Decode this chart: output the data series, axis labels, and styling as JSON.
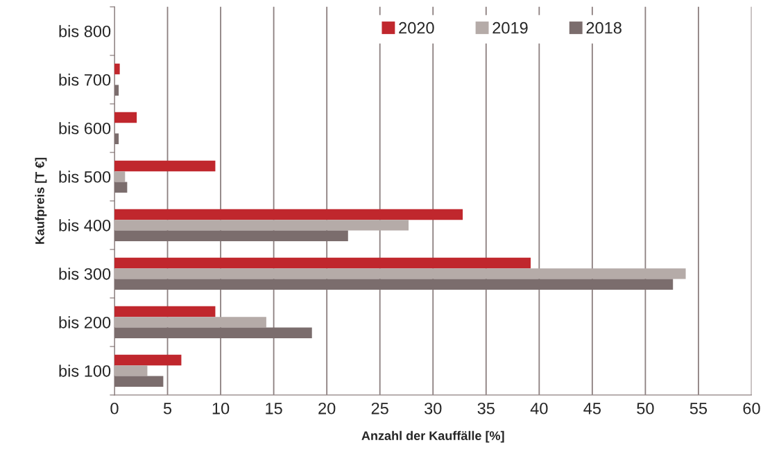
{
  "chart_data": {
    "type": "bar",
    "orientation": "horizontal",
    "xlabel": "Anzahl der Kauffälle [%]",
    "ylabel": "Kaufpreis [T €]",
    "categories": [
      "bis 800",
      "bis 700",
      "bis 600",
      "bis 500",
      "bis 400",
      "bis 300",
      "bis 200",
      "bis 100"
    ],
    "series": [
      {
        "name": "2020",
        "color": "#c0272d",
        "values": [
          0,
          0.5,
          2.1,
          9.5,
          32.8,
          39.2,
          9.5,
          6.3
        ]
      },
      {
        "name": "2019",
        "color": "#b5aba8",
        "values": [
          0,
          0,
          0,
          1.0,
          27.7,
          53.8,
          14.3,
          3.1
        ]
      },
      {
        "name": "2018",
        "color": "#7b6d6d",
        "values": [
          0,
          0.4,
          0.4,
          1.2,
          22.0,
          52.6,
          18.6,
          4.6
        ]
      }
    ],
    "xlim": [
      0,
      60
    ],
    "xticks": [
      0,
      5,
      10,
      15,
      20,
      25,
      30,
      35,
      40,
      45,
      50,
      55,
      60
    ],
    "grid": "x",
    "legend": "top right"
  }
}
